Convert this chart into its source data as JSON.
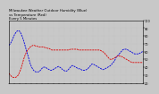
{
  "title": "Milwaukee Weather Outdoor Humidity (Blue)\nvs Temperature (Red)\nEvery 5 Minutes",
  "title_fontsize": 2.8,
  "background_color": "#c8c8c8",
  "plot_bg_color": "#c8c8c8",
  "blue_line_color": "#0000dd",
  "red_line_color": "#dd0000",
  "blue_x": [
    0,
    1,
    2,
    3,
    4,
    5,
    6,
    7,
    8,
    9,
    10,
    11,
    12,
    13,
    14,
    15,
    16,
    17,
    18,
    19,
    20,
    21,
    22,
    23,
    24,
    25,
    26,
    27,
    28,
    29,
    30,
    31,
    32,
    33,
    34,
    35,
    36,
    37,
    38,
    39,
    40,
    41,
    42,
    43,
    44,
    45,
    46,
    47,
    48,
    49,
    50,
    51,
    52,
    53,
    54,
    55,
    56,
    57,
    58,
    59,
    60,
    61,
    62,
    63,
    64,
    65,
    66,
    67,
    68,
    69,
    70,
    71,
    72,
    73,
    74,
    75,
    76,
    77,
    78,
    79,
    80,
    81,
    82,
    83,
    84,
    85,
    86,
    87,
    88,
    89,
    90,
    91,
    92,
    93,
    94,
    95,
    96,
    97,
    98,
    99,
    100
  ],
  "blue_y": [
    68,
    70,
    73,
    77,
    81,
    84,
    86,
    87,
    86,
    83,
    79,
    74,
    68,
    62,
    56,
    50,
    44,
    40,
    37,
    35,
    34,
    34,
    34,
    35,
    37,
    39,
    40,
    40,
    39,
    38,
    37,
    36,
    36,
    37,
    38,
    39,
    40,
    41,
    40,
    39,
    37,
    36,
    35,
    35,
    36,
    38,
    40,
    42,
    42,
    41,
    40,
    39,
    38,
    38,
    37,
    36,
    36,
    36,
    37,
    38,
    40,
    42,
    44,
    44,
    43,
    42,
    41,
    40,
    39,
    38,
    37,
    37,
    38,
    39,
    40,
    41,
    42,
    44,
    46,
    48,
    52,
    54,
    56,
    58,
    60,
    62,
    63,
    63,
    63,
    62,
    61,
    60,
    59,
    58,
    57,
    57,
    57,
    57,
    58,
    59,
    60
  ],
  "red_x": [
    0,
    1,
    2,
    3,
    4,
    5,
    6,
    7,
    8,
    9,
    10,
    11,
    12,
    13,
    14,
    15,
    16,
    17,
    18,
    19,
    20,
    21,
    22,
    23,
    24,
    25,
    26,
    27,
    28,
    29,
    30,
    31,
    32,
    33,
    34,
    35,
    36,
    37,
    38,
    39,
    40,
    41,
    42,
    43,
    44,
    45,
    46,
    47,
    48,
    49,
    50,
    51,
    52,
    53,
    54,
    55,
    56,
    57,
    58,
    59,
    60,
    61,
    62,
    63,
    64,
    65,
    66,
    67,
    68,
    69,
    70,
    71,
    72,
    73,
    74,
    75,
    76,
    77,
    78,
    79,
    80,
    81,
    82,
    83,
    84,
    85,
    86,
    87,
    88,
    89,
    90,
    91,
    92,
    93,
    94,
    95,
    96,
    97,
    98,
    99,
    100
  ],
  "red_y": [
    32,
    30,
    28,
    27,
    27,
    27,
    28,
    30,
    34,
    38,
    44,
    50,
    55,
    59,
    62,
    64,
    66,
    67,
    68,
    68,
    67,
    67,
    66,
    66,
    66,
    66,
    66,
    65,
    65,
    64,
    64,
    63,
    62,
    62,
    62,
    62,
    62,
    62,
    62,
    62,
    62,
    62,
    62,
    62,
    62,
    62,
    63,
    63,
    63,
    63,
    63,
    63,
    62,
    62,
    62,
    62,
    62,
    62,
    62,
    62,
    62,
    62,
    62,
    62,
    62,
    62,
    62,
    62,
    62,
    61,
    60,
    59,
    57,
    55,
    53,
    51,
    50,
    50,
    51,
    52,
    53,
    54,
    55,
    54,
    54,
    53,
    52,
    51,
    50,
    49,
    48,
    47,
    46,
    46,
    46,
    46,
    46,
    46,
    46,
    46,
    46
  ],
  "ylim": [
    20,
    100
  ],
  "xlim": [
    0,
    100
  ],
  "yticks": [
    20,
    30,
    40,
    50,
    60,
    70,
    80,
    90,
    100
  ],
  "ytick_labels": [
    "20",
    "30",
    "40",
    "50",
    "60",
    "70",
    "80",
    "90",
    "100"
  ],
  "ytick_fontsize": 2.5,
  "xtick_fontsize": 2.2,
  "num_xticks": 25,
  "line_width": 0.6,
  "dash_on": 2.5,
  "dash_off": 1.0,
  "grid_color": "#aaaaaa",
  "grid_alpha": 0.5
}
